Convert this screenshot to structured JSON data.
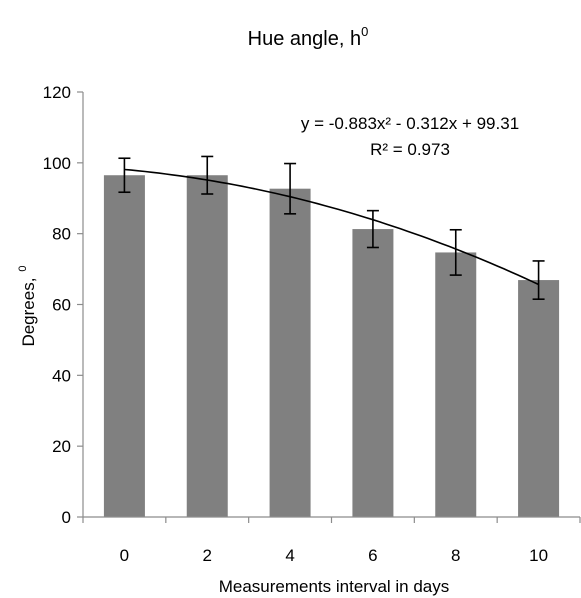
{
  "chart_data": {
    "type": "bar",
    "title": "Hue angle, h",
    "title_sup": "0",
    "xlabel": "Measurements interval in days",
    "ylabel": "Degrees,",
    "ylabel_sup": "0",
    "categories": [
      "0",
      "2",
      "4",
      "6",
      "8",
      "10"
    ],
    "values": [
      96.5,
      96.5,
      92.7,
      81.3,
      74.7,
      66.9
    ],
    "error": [
      4.8,
      5.3,
      7.1,
      5.2,
      6.4,
      5.4
    ],
    "ylim": [
      0,
      120
    ],
    "yticks": [
      "0",
      "20",
      "40",
      "60",
      "80",
      "100",
      "120"
    ],
    "grid": false,
    "legend": "none",
    "bar_color": "#808080",
    "trendline": {
      "type": "polynomial",
      "equation": "y = -0.883x² - 0.312x + 99.31",
      "r_squared": "R² = 0.973",
      "coefficients": [
        -0.883,
        -0.312,
        99.31
      ]
    }
  }
}
